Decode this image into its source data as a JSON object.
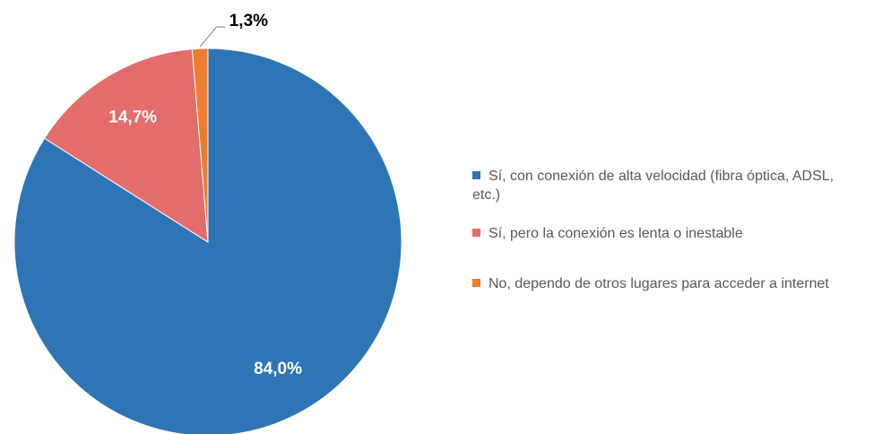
{
  "chart_data": {
    "type": "pie",
    "categories": [
      "Sí, con conexión de alta velocidad (fibra óptica, ADSL, etc.)",
      "Sí, pero la conexión es lenta o inestable",
      "No, dependo de otros lugares para acceder a internet"
    ],
    "values": [
      84.0,
      14.7,
      1.3
    ],
    "value_labels": [
      "84,0%",
      "14,7%",
      "1,3%"
    ],
    "colors": [
      "#2e75b6",
      "#e46c6a",
      "#ed7d31"
    ]
  }
}
